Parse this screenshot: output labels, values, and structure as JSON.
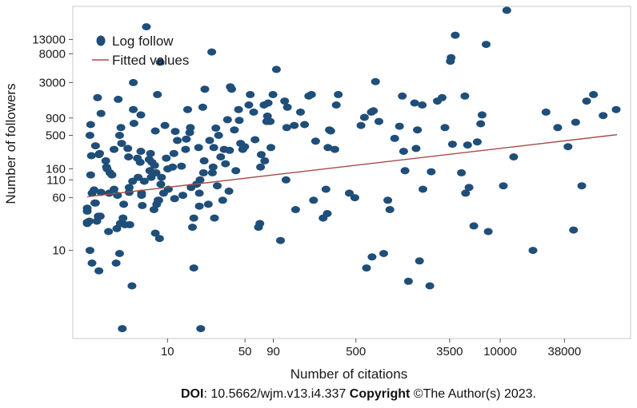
{
  "footer": {
    "doi_label": "DOI",
    "doi_text": ": 10.5662/wjm.v13.i4.337 ",
    "copyright_label": "Copyright",
    "copyright_text": " ©The Author(s) 2023."
  },
  "chart_data": {
    "type": "scatter",
    "xlabel": "Number of citations",
    "ylabel": "Number of followers",
    "xscale": "log",
    "yscale": "log",
    "xlim": [
      1.4,
      150000
    ],
    "ylim": [
      0.5,
      40000
    ],
    "x_ticks": [
      10,
      50,
      90,
      500,
      3500,
      10000,
      38000
    ],
    "y_ticks": [
      10,
      60,
      110,
      160,
      500,
      900,
      3000,
      8000,
      13000
    ],
    "grid": false,
    "legend_position": "top-left",
    "colors": {
      "points": "#1f4e79",
      "fit": "#a84a4a",
      "frame": "#c8c8c8"
    },
    "series": [
      {
        "name": "Log follow",
        "kind": "points",
        "points": [
          [
            2,
            42
          ],
          [
            2,
            38
          ],
          [
            2,
            26
          ],
          [
            2,
            25
          ],
          [
            5,
            27
          ],
          [
            6,
            10
          ],
          [
            6,
            500
          ],
          [
            7,
            130
          ],
          [
            7,
            720
          ],
          [
            8,
            250
          ],
          [
            9,
            6.5
          ],
          [
            9,
            70
          ],
          [
            12,
            78
          ],
          [
            13,
            50
          ],
          [
            14,
            350
          ],
          [
            14,
            50
          ],
          [
            16,
            27
          ],
          [
            17,
            1800
          ],
          [
            18,
            32
          ],
          [
            19,
            5
          ],
          [
            19,
            260
          ],
          [
            20,
            270
          ],
          [
            21,
            32
          ],
          [
            22,
            1050
          ],
          [
            22,
            72
          ],
          [
            29,
            210
          ],
          [
            30,
            170
          ],
          [
            31,
            160
          ],
          [
            33,
            19
          ],
          [
            34,
            70
          ],
          [
            35,
            140
          ],
          [
            38,
            130
          ],
          [
            41,
            80
          ],
          [
            41,
            310
          ],
          [
            44,
            6.5
          ],
          [
            45,
            21
          ],
          [
            46,
            65
          ],
          [
            47,
            1700
          ],
          [
            49,
            500
          ],
          [
            49,
            9
          ],
          [
            50,
            25
          ],
          [
            51,
            650
          ],
          [
            52,
            380
          ],
          [
            53,
            0.7
          ],
          [
            54,
            30
          ],
          [
            55,
            48
          ],
          [
            57,
            24
          ],
          [
            61,
            320
          ],
          [
            62,
            240
          ],
          [
            63,
            72
          ],
          [
            63,
            85
          ],
          [
            64,
            24
          ],
          [
            67,
            3
          ],
          [
            68,
            105
          ],
          [
            69,
            3000
          ],
          [
            69,
            1200
          ],
          [
            70,
            750
          ],
          [
            75,
            230
          ],
          [
            76,
            120
          ],
          [
            79,
            200
          ],
          [
            80,
            1000
          ],
          [
            80,
            290
          ],
          [
            81,
            65
          ],
          [
            81,
            70
          ],
          [
            82,
            46
          ],
          [
            85,
            105
          ],
          [
            88,
            20000
          ],
          [
            92,
            220
          ],
          [
            93,
            150
          ],
          [
            94,
            270
          ],
          [
            95,
            120
          ],
          [
            96,
            200
          ],
          [
            99,
            40
          ],
          [
            100,
            180
          ],
          [
            101,
            580
          ],
          [
            101,
            18
          ],
          [
            102,
            140
          ],
          [
            103,
            48
          ],
          [
            104,
            2000
          ],
          [
            105,
            55
          ],
          [
            106,
            55
          ],
          [
            107,
            15
          ],
          [
            108,
            6000
          ],
          [
            109,
            95
          ],
          [
            110,
            120
          ],
          [
            113,
            70
          ],
          [
            115,
            700
          ],
          [
            117,
            230
          ],
          [
            119,
            160
          ],
          [
            120,
            80
          ],
          [
            126,
            170
          ],
          [
            128,
            270
          ],
          [
            129,
            58
          ],
          [
            130,
            570
          ],
          [
            133,
            420
          ],
          [
            139,
            175
          ],
          [
            141,
            65
          ],
          [
            145,
            310
          ],
          [
            146,
            440
          ],
          [
            148,
            1200
          ],
          [
            151,
            550
          ],
          [
            152,
            650
          ],
          [
            153,
            85
          ],
          [
            155,
            22
          ],
          [
            157,
            5.5
          ],
          [
            157,
            30
          ],
          [
            161,
            95
          ],
          [
            164,
            330
          ],
          [
            165,
            70
          ],
          [
            165,
            45
          ],
          [
            166,
            110
          ],
          [
            167,
            0.7
          ],
          [
            170,
            1300
          ],
          [
            171,
            140
          ],
          [
            172,
            210
          ],
          [
            173,
            2400
          ],
          [
            178,
            48
          ],
          [
            180,
            420
          ],
          [
            183,
            8500
          ],
          [
            184,
            140
          ],
          [
            185,
            170
          ],
          [
            186,
            330
          ],
          [
            187,
            30
          ],
          [
            189,
            640
          ],
          [
            191,
            90
          ],
          [
            193,
            500
          ],
          [
            196,
            240
          ],
          [
            199,
            55
          ],
          [
            201,
            310
          ],
          [
            203,
            190
          ],
          [
            206,
            850
          ],
          [
            208,
            75
          ],
          [
            209,
            300
          ],
          [
            210,
            2600
          ],
          [
            212,
            2400
          ],
          [
            216,
            600
          ],
          [
            218,
            150
          ],
          [
            222,
            1200
          ],
          [
            223,
            830
          ],
          [
            225,
            380
          ],
          [
            228,
            310
          ],
          [
            231,
            340
          ],
          [
            237,
            1400
          ],
          [
            239,
            2000
          ],
          [
            244,
            1100
          ],
          [
            246,
            430
          ],
          [
            251,
            22
          ],
          [
            253,
            25
          ],
          [
            254,
            170
          ],
          [
            255,
            260
          ],
          [
            259,
            1400
          ],
          [
            260,
            210
          ],
          [
            263,
            800
          ],
          [
            264,
            960
          ],
          [
            265,
            1500
          ],
          [
            268,
            800
          ],
          [
            269,
            330
          ],
          [
            272,
            2000
          ],
          [
            277,
            4700
          ],
          [
            283,
            14
          ],
          [
            289,
            1600
          ],
          [
            291,
            110
          ],
          [
            292,
            650
          ],
          [
            293,
            1300
          ],
          [
            303,
            700
          ],
          [
            305,
            40
          ],
          [
            312,
            1100
          ],
          [
            318,
            720
          ],
          [
            324,
            1900
          ],
          [
            328,
            2000
          ],
          [
            331,
            55
          ],
          [
            334,
            410
          ],
          [
            345,
            30
          ],
          [
            349,
            80
          ],
          [
            351,
            35
          ],
          [
            352,
            330
          ],
          [
            354,
            600
          ],
          [
            356,
            580
          ],
          [
            362,
            310
          ],
          [
            364,
            1400
          ],
          [
            367,
            2000
          ],
          [
            383,
            70
          ],
          [
            391,
            60
          ],
          [
            400,
            700
          ],
          [
            405,
            920
          ],
          [
            408,
            5.5
          ],
          [
            415,
            1100
          ],
          [
            416,
            8
          ],
          [
            418,
            1150
          ],
          [
            421,
            3100
          ],
          [
            426,
            800
          ],
          [
            433,
            9
          ],
          [
            439,
            55
          ],
          [
            442,
            40
          ],
          [
            449,
            450
          ],
          [
            456,
            680
          ],
          [
            460,
            1900
          ],
          [
            462,
            290
          ],
          [
            464,
            150
          ],
          [
            469,
            3.5
          ],
          [
            478,
            1500
          ],
          [
            480,
            320
          ],
          [
            482,
            600
          ],
          [
            485,
            7
          ],
          [
            489,
            1400
          ],
          [
            490,
            80
          ],
          [
            500,
            3
          ],
          [
            502,
            145
          ],
          [
            511,
            1600
          ],
          [
            518,
            1800
          ],
          [
            522,
            650
          ],
          [
            530,
            6200
          ],
          [
            531,
            7000
          ],
          [
            533,
            370
          ],
          [
            537,
            15000
          ],
          [
            546,
            140
          ],
          [
            551,
            1900
          ],
          [
            552,
            70
          ],
          [
            555,
            360
          ],
          [
            557,
            85
          ],
          [
            564,
            23
          ],
          [
            569,
            400
          ],
          [
            574,
            740
          ],
          [
            576,
            1000
          ],
          [
            582,
            11000
          ],
          [
            585,
            19
          ],
          [
            607,
            90
          ],
          [
            612,
            35000
          ],
          [
            622,
            240
          ],
          [
            650,
            10
          ],
          [
            669,
            1100
          ],
          [
            686,
            650
          ],
          [
            701,
            340
          ],
          [
            709,
            20
          ],
          [
            712,
            780
          ],
          [
            721,
            90
          ],
          [
            728,
            1600
          ],
          [
            738,
            2000
          ],
          [
            752,
            980
          ],
          [
            771,
            1200
          ]
        ]
      },
      {
        "name": "Fitted values",
        "kind": "line",
        "x": [
          2,
          150000
        ],
        "y": [
          62,
          510
        ]
      }
    ]
  }
}
